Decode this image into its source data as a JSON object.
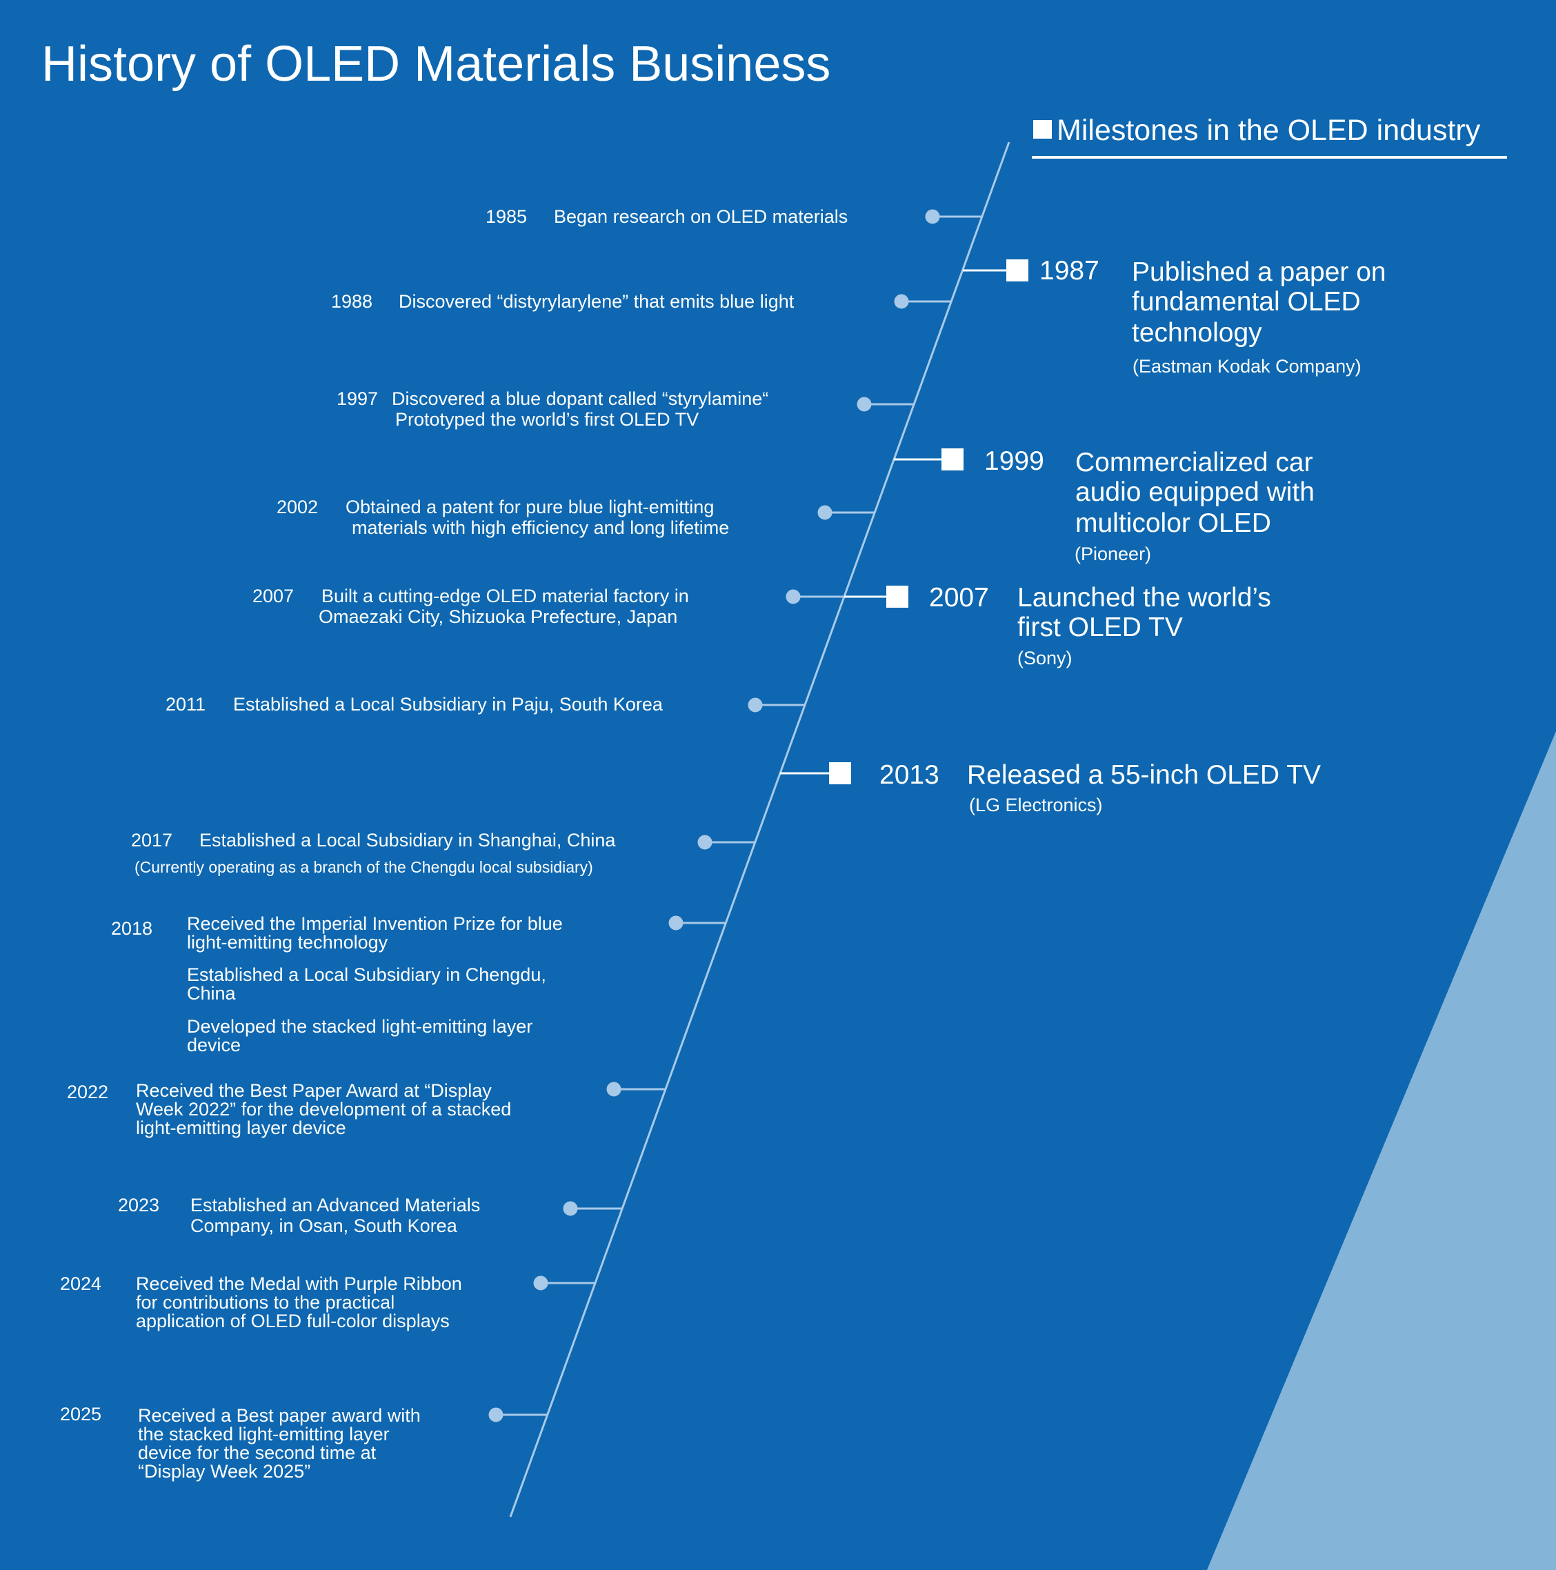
{
  "title": "History of OLED Materials Business",
  "colors": {
    "background": "#0e67b0",
    "accent_triangle": "#85b4d9",
    "timeline": "#a9c9e8",
    "text": "#ffffff"
  },
  "industry_header": "Milestones in the OLED industry",
  "company_events": [
    {
      "year": "1985",
      "lines": [
        "Began research on OLED materials"
      ]
    },
    {
      "year": "1988",
      "lines": [
        "Discovered “distyrylarylene” that emits blue light"
      ]
    },
    {
      "year": "1997",
      "lines": [
        "Discovered a blue dopant called “styrylamine“",
        "Prototyped the world’s first OLED TV"
      ]
    },
    {
      "year": "2002",
      "lines": [
        "Obtained a patent for pure blue light-emitting",
        "materials with high efficiency and long lifetime"
      ]
    },
    {
      "year": "2007",
      "lines": [
        "Built a cutting-edge OLED material factory in",
        "Omaezaki City, Shizuoka Prefecture, Japan"
      ]
    },
    {
      "year": "2011",
      "lines": [
        "Established a Local Subsidiary in Paju, South Korea"
      ]
    },
    {
      "year": "2017",
      "lines": [
        "Established a Local  Subsidiary in Shanghai, China"
      ],
      "note": "(Currently operating as a branch of the Chengdu local subsidiary)"
    },
    {
      "year": "2018",
      "lines": [
        "Received the Imperial Invention Prize for blue",
        "light-emitting  technology",
        "Established a Local Subsidiary in Chengdu,",
        "China",
        "Developed the stacked light-emitting layer",
        "device"
      ]
    },
    {
      "year": "2022",
      "lines": [
        "Received the Best Paper Award at “Display",
        "Week 2022” for the development of a stacked",
        "light-emitting layer device"
      ]
    },
    {
      "year": "2023",
      "lines": [
        "Established an Advanced Materials",
        "Company, in Osan, South Korea"
      ]
    },
    {
      "year": "2024",
      "lines": [
        "Received the Medal with Purple Ribbon",
        "for contributions to the practical",
        "application of OLED full-color displays"
      ]
    },
    {
      "year": "2025",
      "lines": [
        "Received a Best paper award with",
        "the stacked light-emitting layer",
        "device for the second time at",
        "“Display Week 2025”"
      ]
    }
  ],
  "industry_events": [
    {
      "year": "1987",
      "lines": [
        "Published a paper on",
        "fundamental OLED",
        "technology"
      ],
      "company": "(Eastman Kodak Company)"
    },
    {
      "year": "1999",
      "lines": [
        "Commercialized car",
        "audio equipped with",
        "multicolor OLED"
      ],
      "company": "(Pioneer)"
    },
    {
      "year": "2007",
      "lines": [
        "Launched the world’s",
        "first OLED TV"
      ],
      "company": "(Sony)"
    },
    {
      "year": "2013",
      "lines": [
        "Released a 55-inch OLED TV"
      ],
      "company": "(LG Electronics)"
    }
  ]
}
